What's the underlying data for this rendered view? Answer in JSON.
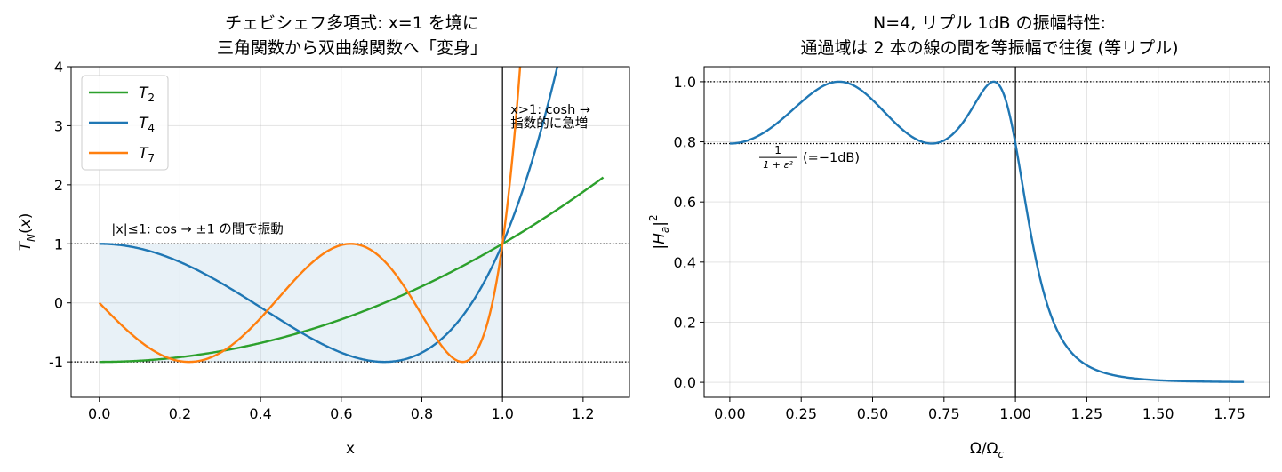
{
  "chart_data": [
    {
      "type": "line",
      "title": [
        "チェビシェフ多項式: x=1 を境に",
        "三角関数から双曲線関数へ「変身」"
      ],
      "xlabel": "x",
      "ylabel": "T_N(x)",
      "xlim": [
        -0.07,
        1.315
      ],
      "ylim": [
        -1.6,
        4.0
      ],
      "xticks": [
        0.0,
        0.2,
        0.4,
        0.6,
        0.8,
        1.0,
        1.2
      ],
      "xtick_labels": [
        "0.0",
        "0.2",
        "0.4",
        "0.6",
        "0.8",
        "1.0",
        "1.2"
      ],
      "yticks": [
        -1,
        0,
        1,
        2,
        3,
        4
      ],
      "ytick_labels": [
        "-1",
        "0",
        "1",
        "2",
        "3",
        "4"
      ],
      "grid": true,
      "legend_position": "top-left",
      "x_range": [
        0,
        1.25
      ],
      "series": [
        {
          "name": "T",
          "subscript": "2",
          "order": 2,
          "color": "#2ca02c"
        },
        {
          "name": "T",
          "subscript": "4",
          "order": 4,
          "color": "#1f77b4"
        },
        {
          "name": "T",
          "subscript": "7",
          "order": 7,
          "color": "#ff7f0e"
        }
      ],
      "shaded_region": {
        "x": [
          0,
          1
        ],
        "y": [
          -1,
          1
        ],
        "color": "#1f77b4"
      },
      "hlines": [
        1,
        -1
      ],
      "vline": 1,
      "annotations": [
        {
          "text": "|x|≤1: cos → ±1 の間で振動",
          "x": 0.03,
          "y": 1.18
        },
        {
          "text": "x>1: cosh →",
          "x": 1.02,
          "y": 3.2
        },
        {
          "text": "指数的に急増",
          "x": 1.02,
          "y": 2.97
        }
      ]
    },
    {
      "type": "line",
      "title": [
        "N=4, リプル 1dB の振幅特性:",
        "通過域は 2 本の線の間を等振幅で往復 (等リプル)"
      ],
      "xlabel": "Ω/Ωc",
      "ylabel": "|Ha|²",
      "xlim": [
        -0.09,
        1.89
      ],
      "ylim": [
        -0.05,
        1.05
      ],
      "xticks": [
        0.0,
        0.25,
        0.5,
        0.75,
        1.0,
        1.25,
        1.5,
        1.75
      ],
      "xtick_labels": [
        "0.00",
        "0.25",
        "0.50",
        "0.75",
        "1.00",
        "1.25",
        "1.50",
        "1.75"
      ],
      "yticks": [
        0.0,
        0.2,
        0.4,
        0.6,
        0.8,
        1.0
      ],
      "ytick_labels": [
        "0.0",
        "0.2",
        "0.4",
        "0.6",
        "0.8",
        "1.0"
      ],
      "grid": true,
      "filter_order": 4,
      "ripple_db": 1,
      "x_range": [
        0,
        1.8
      ],
      "series": [
        {
          "name": "|Ha|²",
          "color": "#1f77b4"
        }
      ],
      "hlines": [
        1.0,
        0.7943
      ],
      "vline": 1.0,
      "annotation": {
        "fraction_num": "1",
        "fraction_den": "1 + ε²",
        "text": "(=−1dB)",
        "x": 0.1,
        "y": 0.745
      }
    }
  ]
}
